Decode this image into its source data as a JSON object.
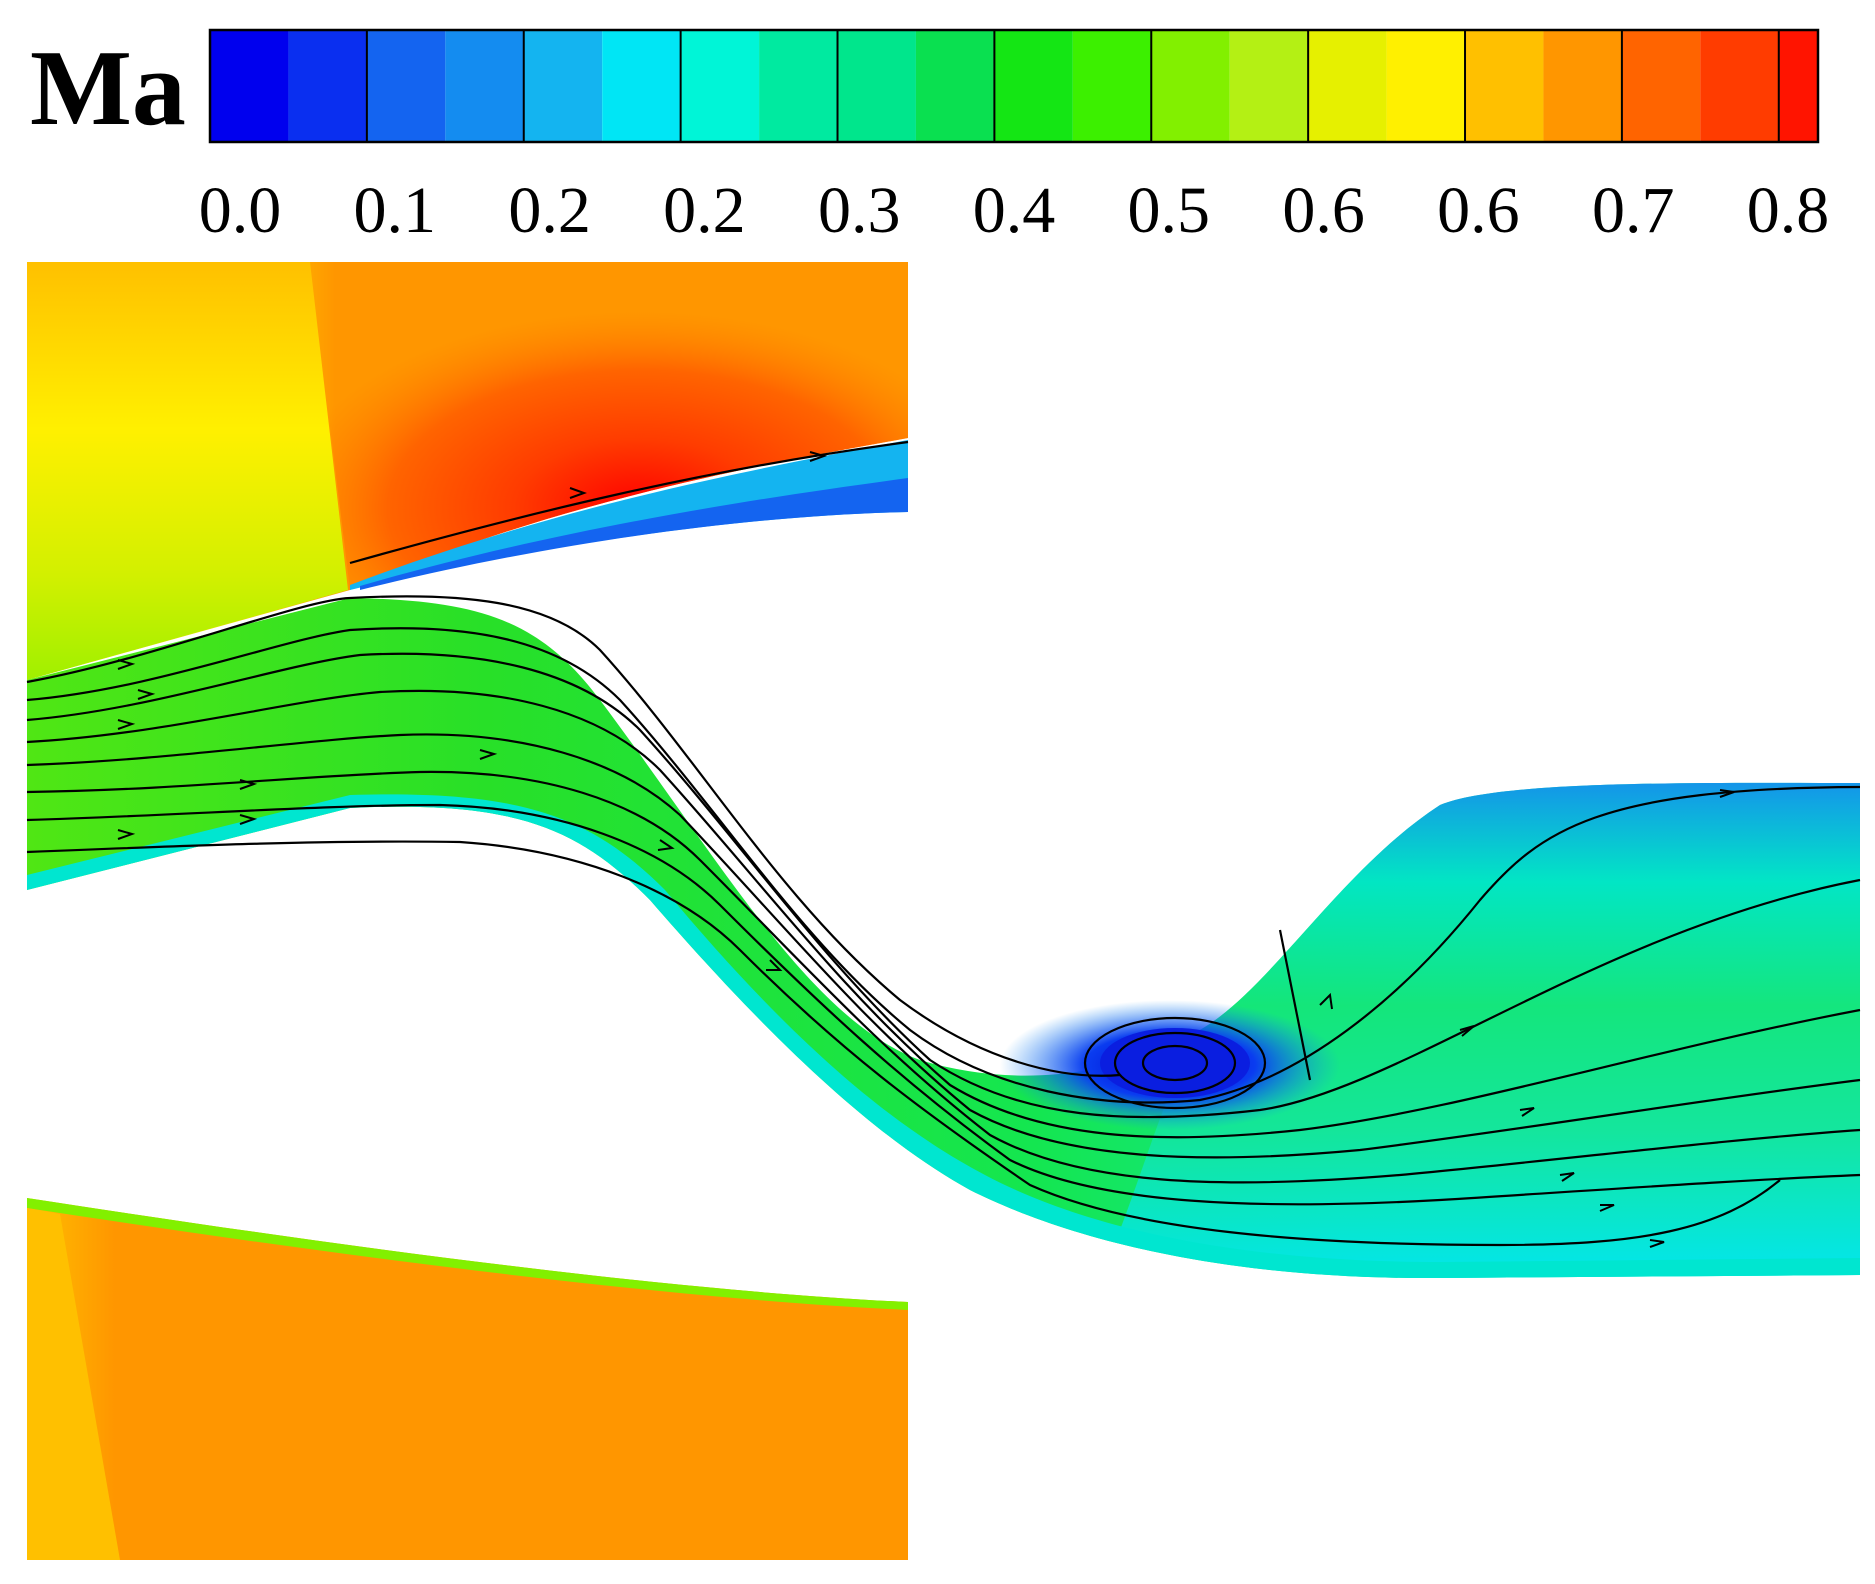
{
  "colorbar": {
    "title": "Ma",
    "tick_labels": [
      "0.0",
      "0.1",
      "0.2",
      "0.2",
      "0.3",
      "0.4",
      "0.5",
      "0.6",
      "0.6",
      "0.7",
      "0.8"
    ],
    "colors": [
      "#0000ee",
      "#0a2ff0",
      "#1464f0",
      "#148cf0",
      "#14b4f0",
      "#00e6f5",
      "#00f5d7",
      "#00eaa0",
      "#00e68c",
      "#0ae050",
      "#14e614",
      "#3cf000",
      "#82f000",
      "#b4f014",
      "#e6f000",
      "#fff000",
      "#ffc000",
      "#ff9600",
      "#ff6400",
      "#ff3c00",
      "#ff1400"
    ],
    "boundaries": [
      0.0,
      0.04,
      0.08,
      0.12,
      0.16,
      0.2,
      0.24,
      0.28,
      0.32,
      0.36,
      0.4,
      0.44,
      0.48,
      0.52,
      0.56,
      0.6,
      0.64,
      0.68,
      0.72,
      0.76,
      0.8,
      0.82
    ]
  },
  "field": {
    "variable": "Ma",
    "regions": {
      "upper_inlet": "high Mach (orange/red) above the splitter",
      "lower_inlet": "uniform orange",
      "s_duct": "green core flow with blue wall layers",
      "recirculation": "dark blue vortex on the downstream bend"
    }
  }
}
